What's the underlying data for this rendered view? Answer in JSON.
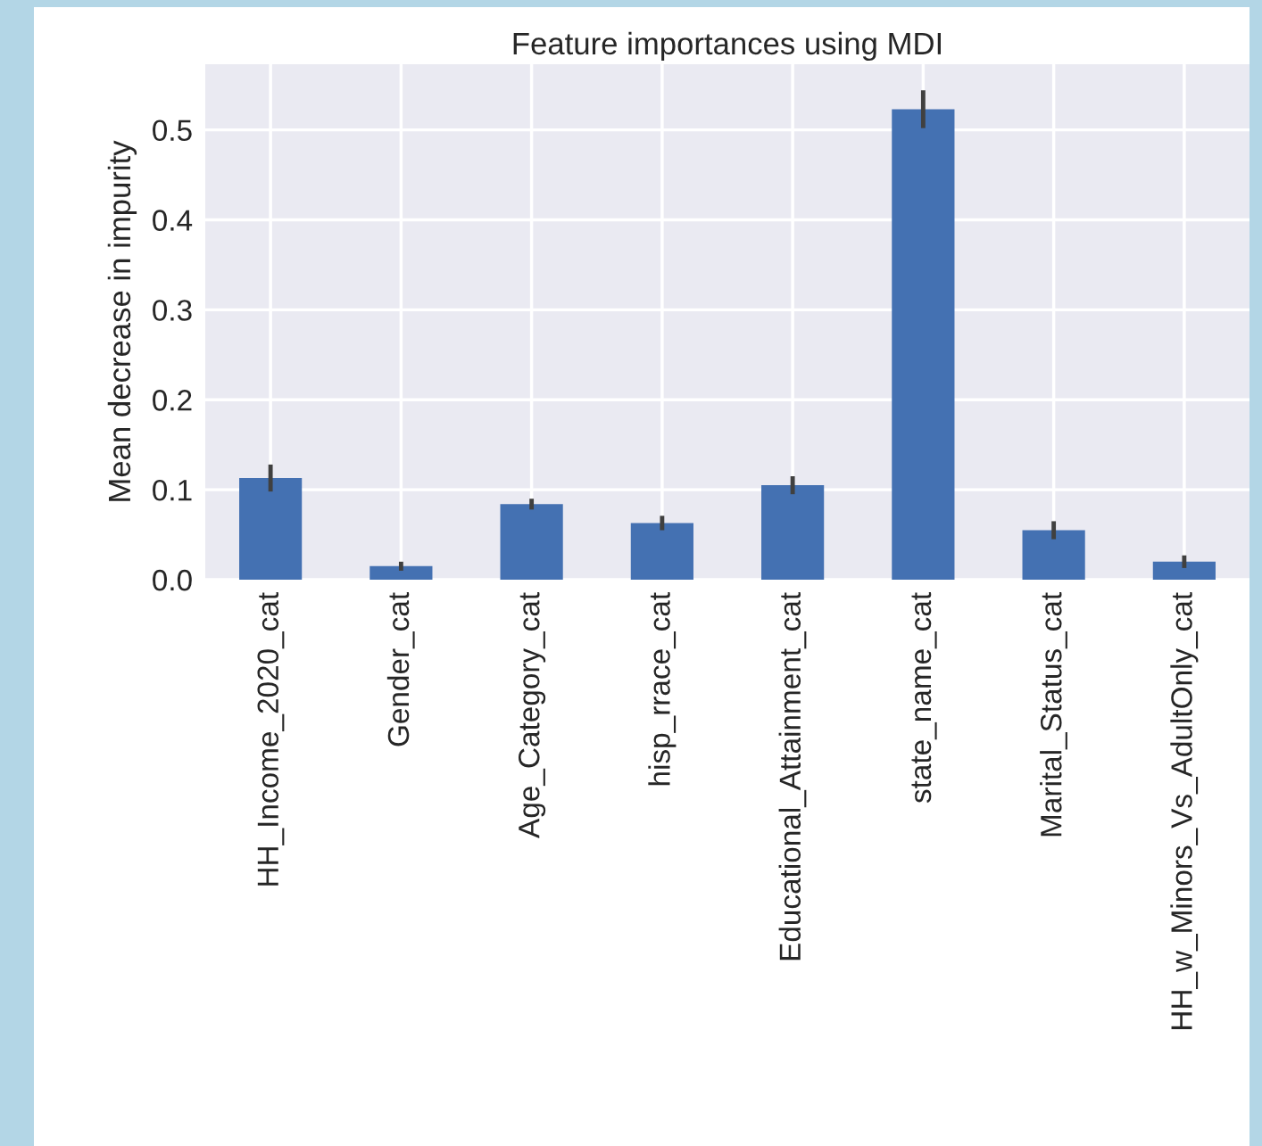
{
  "chart_data": {
    "type": "bar",
    "title": "Feature importances using MDI",
    "ylabel": "Mean decrease in impurity",
    "categories": [
      "HH_Income_2020_cat",
      "Gender_cat",
      "Age_Category_cat",
      "hisp_rrace_cat",
      "Educational_Attainment_cat",
      "state_name_cat",
      "Marital_Status_cat",
      "HH_w_Minors_Vs_AdultOnly_cat"
    ],
    "values": [
      0.113,
      0.015,
      0.084,
      0.063,
      0.105,
      0.523,
      0.055,
      0.02
    ],
    "errors": [
      0.015,
      0.005,
      0.006,
      0.008,
      0.01,
      0.021,
      0.01,
      0.007
    ],
    "color": "#4471b2",
    "ylim": [
      0,
      0.573
    ],
    "yticks": [
      {
        "value": 0,
        "label": "0.0"
      },
      0.1,
      0.2,
      0.3,
      0.4,
      0.5
    ],
    "grid": true,
    "legend": false
  }
}
